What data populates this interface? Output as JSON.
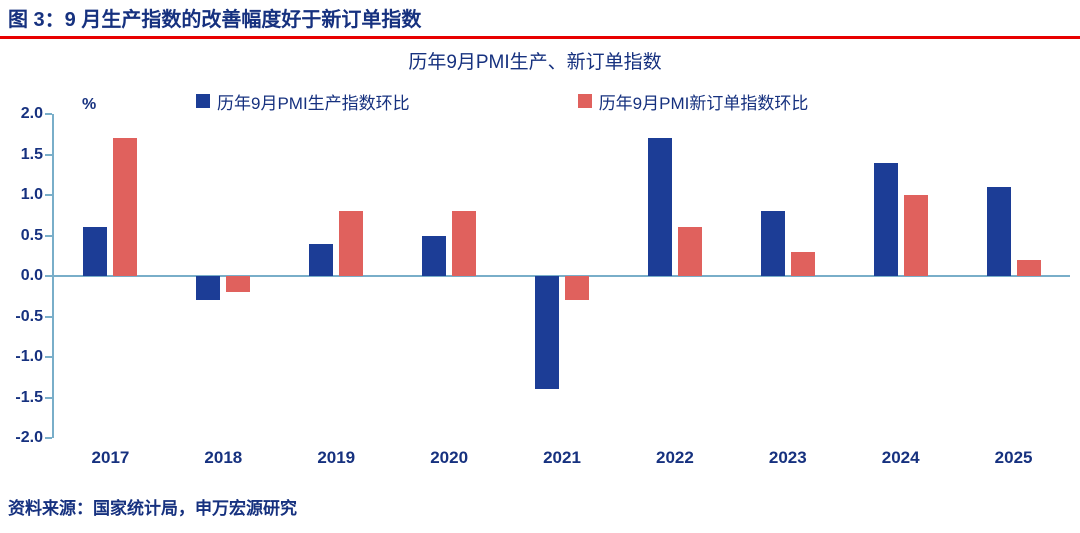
{
  "page": {
    "figure_title": "图 3：9 月生产指数的改善幅度好于新订单指数",
    "source_note": "资料来源：国家统计局，申万宏源研究"
  },
  "chart_data": {
    "type": "bar",
    "title": "历年9月PMI生产、新订单指数",
    "unit_label": "%",
    "categories": [
      "2017",
      "2018",
      "2019",
      "2020",
      "2021",
      "2022",
      "2023",
      "2024",
      "2025"
    ],
    "series": [
      {
        "name": "历年9月PMI生产指数环比",
        "color": "#1c3d96",
        "values": [
          0.6,
          -0.3,
          0.4,
          0.5,
          -1.4,
          1.7,
          0.8,
          1.4,
          1.1
        ]
      },
      {
        "name": "历年9月PMI新订单指数环比",
        "color": "#e0615d",
        "values": [
          1.7,
          -0.2,
          0.8,
          0.8,
          -0.3,
          0.6,
          0.3,
          1.0,
          0.2
        ]
      }
    ],
    "ylim": [
      -2.0,
      2.0
    ],
    "yticks": [
      2.0,
      1.5,
      1.0,
      0.5,
      0.0,
      -0.5,
      -1.0,
      -1.5,
      -2.0
    ],
    "grid": false,
    "legend_position": "top"
  },
  "colors": {
    "navy_text": "#16317f",
    "title_rule_red": "#e80000",
    "axis_line": "#79aec9",
    "bar_blue": "#1c3d96",
    "bar_red": "#e0615d"
  }
}
